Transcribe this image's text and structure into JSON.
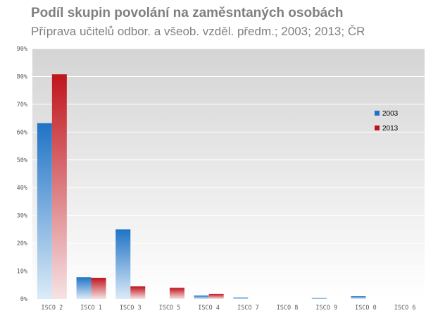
{
  "chart_data": {
    "type": "bar",
    "title": "Podíl skupin povolání na zaměsntaných osobách",
    "subtitle": "Příprava učitelů odbor. a všeob. vzděl. předm.; 2003; 2013; ČR",
    "xlabel": "",
    "ylabel": "",
    "categories": [
      "ISCO 2",
      "ISCO 1",
      "ISCO 3",
      "ISCO 5",
      "ISCO 4",
      "ISCO 7",
      "ISCO 8",
      "ISCO 9",
      "ISCO 0",
      "ISCO 6"
    ],
    "series": [
      {
        "name": "2003",
        "values": [
          63.2,
          7.8,
          25.0,
          0.0,
          1.2,
          0.5,
          0.0,
          0.3,
          1.0,
          0.0
        ]
      },
      {
        "name": "2013",
        "values": [
          80.8,
          7.6,
          4.5,
          4.0,
          1.8,
          0.0,
          0.0,
          0.0,
          0.0,
          0.0
        ]
      }
    ],
    "ylim": [
      0,
      90
    ],
    "yticks": [
      "0%",
      "10%",
      "20%",
      "30%",
      "40%",
      "50%",
      "60%",
      "70%",
      "80%",
      "90%"
    ],
    "grid": true,
    "legend_position": "right",
    "colors": {
      "2003": "#1f73c6",
      "2013": "#c0141c",
      "plot_top": "#d9d9d9",
      "plot_bottom": "#ffffff",
      "grid": "#ffffff"
    }
  }
}
